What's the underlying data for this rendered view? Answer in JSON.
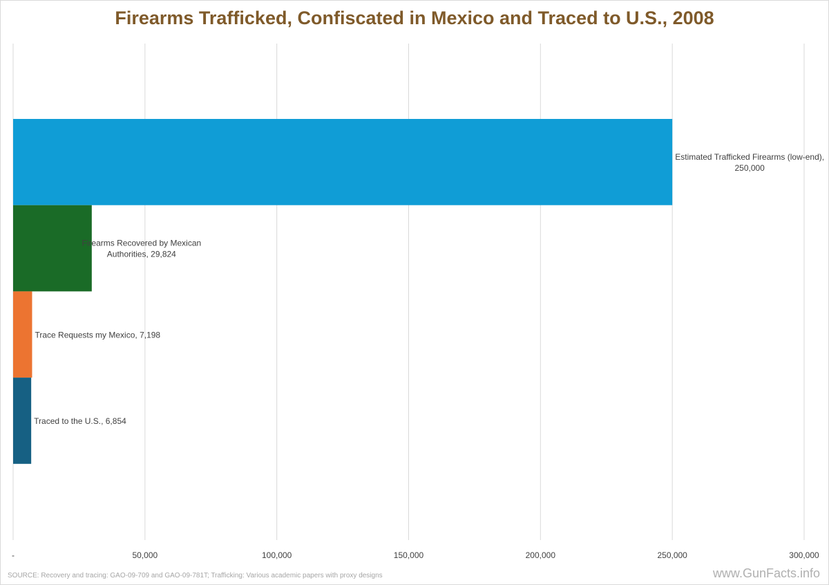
{
  "chart_data": {
    "type": "bar",
    "orientation": "horizontal",
    "title": "Firearms Trafficked, Confiscated in Mexico and Traced to U.S., 2008",
    "categories": [
      "Estimated Trafficked Firearms (low-end)",
      "Firearms Recovered by Mexican Authorities",
      "Trace Requests my Mexico",
      "Traced to the U.S."
    ],
    "values": [
      250000,
      29824,
      7198,
      6854
    ],
    "value_labels": [
      "250,000",
      "29,824",
      "7,198",
      "6,854"
    ],
    "colors": [
      "#109dd6",
      "#1a6b27",
      "#ec7431",
      "#166083"
    ],
    "xlim": [
      0,
      300000
    ],
    "xticks": [
      0,
      50000,
      100000,
      150000,
      200000,
      250000,
      300000
    ],
    "xtick_labels": [
      "-",
      "50,000",
      "100,000",
      "150,000",
      "200,000",
      "250,000",
      "300,000"
    ],
    "grid": true,
    "xlabel": "",
    "ylabel": ""
  },
  "source": "SOURCE: Recovery and tracing: GAO-09-709 and GAO-09-781T; Trafficking: Various academic papers with proxy designs",
  "brand": "www.GunFacts.info"
}
